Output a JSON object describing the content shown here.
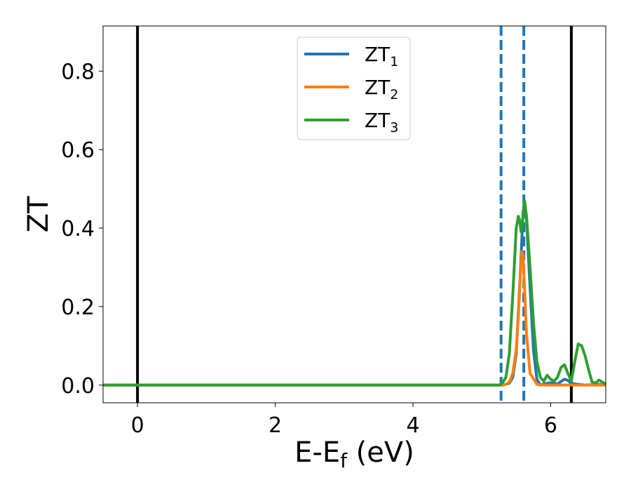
{
  "chart_data": {
    "type": "line",
    "title": "",
    "xlabel": "E-E",
    "xlabel_sub": "f",
    "xlabel_unit": " (eV)",
    "ylabel": "ZT",
    "xlim": [
      -0.5,
      6.8
    ],
    "ylim": [
      -0.045,
      0.915
    ],
    "xticks": [
      0,
      2,
      4,
      6
    ],
    "yticks": [
      0.0,
      0.2,
      0.4,
      0.6,
      0.8
    ],
    "xtick_labels": [
      "0",
      "2",
      "4",
      "6"
    ],
    "ytick_labels": [
      "0.0",
      "0.2",
      "0.4",
      "0.6",
      "0.8"
    ],
    "grid": false,
    "legend_position": "upper-center",
    "series": [
      {
        "name": "ZT",
        "name_sub": "1",
        "color": "#1f77b4",
        "x": [
          -0.5,
          5.3,
          5.35,
          5.4,
          5.45,
          5.5,
          5.55,
          5.6,
          5.62,
          5.65,
          5.7,
          5.75,
          5.8,
          5.85,
          5.9,
          6.0,
          6.1,
          6.2,
          6.25,
          6.3,
          6.4,
          6.5,
          6.6,
          6.7,
          6.8
        ],
        "y": [
          0.0,
          0.0,
          0.002,
          0.005,
          0.02,
          0.08,
          0.25,
          0.44,
          0.47,
          0.42,
          0.25,
          0.09,
          0.015,
          0.0,
          0.003,
          0.006,
          0.003,
          0.015,
          0.012,
          0.004,
          0.002,
          0.0,
          0.001,
          0.002,
          0.0
        ]
      },
      {
        "name": "ZT",
        "name_sub": "2",
        "color": "#ff7f0e",
        "x": [
          -0.5,
          5.3,
          5.35,
          5.4,
          5.45,
          5.5,
          5.53,
          5.56,
          5.58,
          5.6,
          5.62,
          5.65,
          5.7,
          5.8,
          5.9,
          6.2,
          6.5,
          6.8
        ],
        "y": [
          0.0,
          0.0,
          0.002,
          0.008,
          0.03,
          0.09,
          0.17,
          0.28,
          0.34,
          0.33,
          0.25,
          0.13,
          0.03,
          0.002,
          0.0,
          0.0,
          0.0,
          0.0
        ]
      },
      {
        "name": "ZT",
        "name_sub": "3",
        "color": "#2ca02c",
        "x": [
          -0.5,
          5.25,
          5.3,
          5.35,
          5.4,
          5.45,
          5.5,
          5.53,
          5.55,
          5.57,
          5.6,
          5.62,
          5.65,
          5.7,
          5.75,
          5.8,
          5.85,
          5.9,
          5.95,
          6.0,
          6.05,
          6.1,
          6.15,
          6.2,
          6.25,
          6.3,
          6.35,
          6.4,
          6.45,
          6.5,
          6.55,
          6.6,
          6.65,
          6.7,
          6.75,
          6.8
        ],
        "y": [
          0.0,
          0.0,
          0.005,
          0.02,
          0.08,
          0.23,
          0.4,
          0.43,
          0.42,
          0.39,
          0.43,
          0.47,
          0.43,
          0.3,
          0.16,
          0.06,
          0.02,
          0.01,
          0.025,
          0.015,
          0.01,
          0.02,
          0.045,
          0.052,
          0.03,
          0.01,
          0.06,
          0.105,
          0.1,
          0.075,
          0.04,
          0.008,
          0.005,
          0.013,
          0.008,
          0.002
        ]
      }
    ],
    "vlines": [
      {
        "x": 0.0,
        "style": "solid",
        "color": "#000000"
      },
      {
        "x": 6.3,
        "style": "solid",
        "color": "#000000"
      },
      {
        "x": 5.28,
        "style": "dashed",
        "color": "#1f77b4"
      },
      {
        "x": 5.61,
        "style": "dashed",
        "color": "#1f77b4"
      }
    ]
  }
}
